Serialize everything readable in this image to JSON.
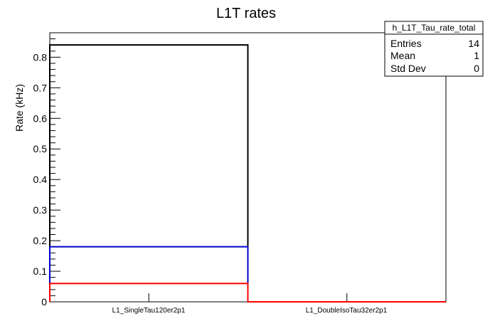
{
  "chart_data": {
    "type": "bar",
    "title": "L1T rates",
    "xlabel": "",
    "ylabel": "Rate (kHz)",
    "categories": [
      "L1_SingleTau120er2p1",
      "L1_DoubleIsoTau32er2p1"
    ],
    "ylim": [
      0,
      0.88
    ],
    "yticks": [
      0,
      0.1,
      0.2,
      0.3,
      0.4,
      0.5,
      0.6,
      0.7,
      0.8
    ],
    "ytick_labels": [
      "0",
      "0.1",
      "0.2",
      "0.3",
      "0.4",
      "0.5",
      "0.6",
      "0.7",
      "0.8"
    ],
    "series": [
      {
        "values": [
          0.84,
          0
        ],
        "color": "#000000"
      },
      {
        "values": [
          0.18,
          0
        ],
        "color": "#0000cc"
      },
      {
        "values": [
          0.06,
          0
        ],
        "color": "#ff0000"
      }
    ],
    "grid": false
  },
  "stats_box": {
    "name": "h_L1T_Tau_rate_total",
    "rows": [
      {
        "label": "Entries",
        "value": "14"
      },
      {
        "label": "Mean",
        "value": "1"
      },
      {
        "label": "Std Dev",
        "value": "0"
      }
    ]
  }
}
